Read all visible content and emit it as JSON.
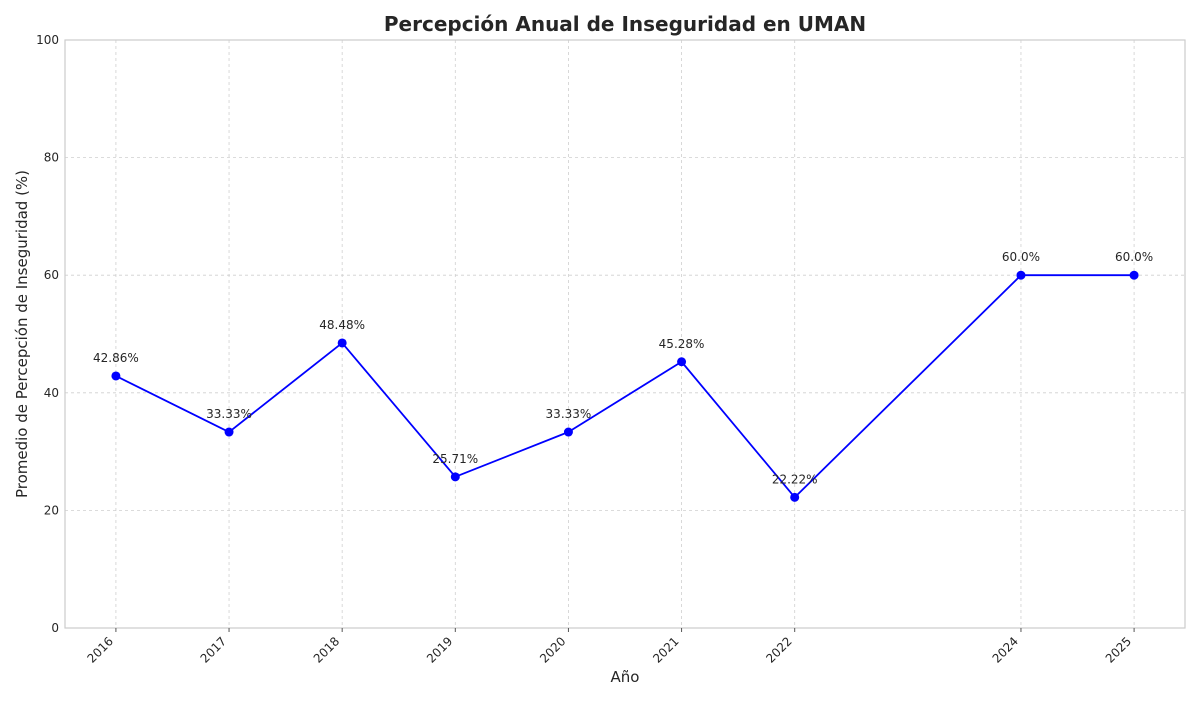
{
  "chart_data": {
    "type": "line",
    "title": "Percepción Anual de Inseguridad en UMAN",
    "xlabel": "Año",
    "ylabel": "Promedio de Percepción de Inseguridad (%)",
    "x": [
      2016,
      2017,
      2018,
      2019,
      2020,
      2021,
      2022,
      2024,
      2025
    ],
    "x_tick_labels": [
      "2016",
      "2017",
      "2018",
      "2019",
      "2020",
      "2021",
      "2022",
      "2024",
      "2025"
    ],
    "y": [
      42.86,
      33.33,
      48.48,
      25.71,
      33.33,
      45.28,
      22.22,
      60.0,
      60.0
    ],
    "data_labels": [
      "42.86%",
      "33.33%",
      "48.48%",
      "25.71%",
      "33.33%",
      "45.28%",
      "22.22%",
      "60.0%",
      "60.0%"
    ],
    "xlim": [
      2015.55,
      2025.45
    ],
    "ylim": [
      0,
      100
    ],
    "y_ticks": [
      0,
      20,
      40,
      60,
      80,
      100
    ],
    "y_tick_labels": [
      "0",
      "20",
      "40",
      "60",
      "80",
      "100"
    ],
    "grid": true,
    "line_color": "#0000ff",
    "marker_color": "#0000ff",
    "marker": "circle"
  }
}
